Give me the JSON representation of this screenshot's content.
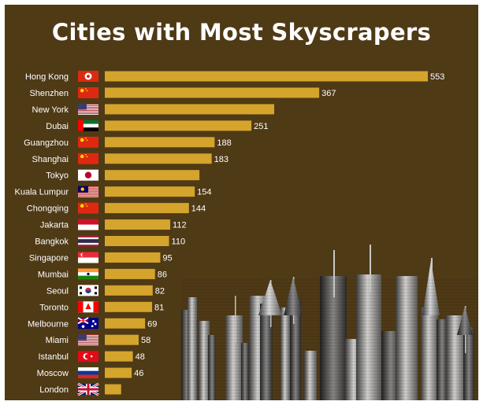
{
  "title": "Cities with Most Skyscrapers",
  "subtitle": "",
  "colors": {
    "background": "#4f3a16",
    "bar": "#d4a42c",
    "text": "#ffffff"
  },
  "chart_data": {
    "type": "bar",
    "orientation": "horizontal",
    "title": "Cities with Most Skyscrapers",
    "xlabel": "",
    "ylabel": "",
    "xlim": [
      0,
      553
    ],
    "grid": false,
    "categories": [
      "Hong Kong",
      "Shenzhen",
      "New York",
      "Dubai",
      "Guangzhou",
      "Shanghai",
      "Tokyo",
      "Kuala Lumpur",
      "Chongqing",
      "Jakarta",
      "Bangkok",
      "Singapore",
      "Mumbai",
      "Seoul",
      "Toronto",
      "Melbourne",
      "Miami",
      "Istanbul",
      "Moscow",
      "London"
    ],
    "values": [
      553,
      367,
      290,
      251,
      188,
      183,
      162,
      154,
      144,
      112,
      110,
      95,
      86,
      82,
      81,
      69,
      58,
      48,
      46,
      28
    ],
    "value_labels": [
      "553",
      "367",
      "",
      "251",
      "188",
      "183",
      "",
      "154",
      "144",
      "112",
      "110",
      "95",
      "86",
      "82",
      "81",
      "69",
      "58",
      "48",
      "46",
      ""
    ],
    "flags": [
      "hong-kong-flag-icon",
      "china-flag-icon",
      "usa-flag-icon",
      "uae-flag-icon",
      "china-flag-icon",
      "china-flag-icon",
      "japan-flag-icon",
      "malaysia-flag-icon",
      "china-flag-icon",
      "indonesia-flag-icon",
      "thailand-flag-icon",
      "singapore-flag-icon",
      "india-flag-icon",
      "south-korea-flag-icon",
      "canada-flag-icon",
      "australia-flag-icon",
      "usa-flag-icon",
      "turkey-flag-icon",
      "russia-flag-icon",
      "uk-flag-icon"
    ]
  }
}
